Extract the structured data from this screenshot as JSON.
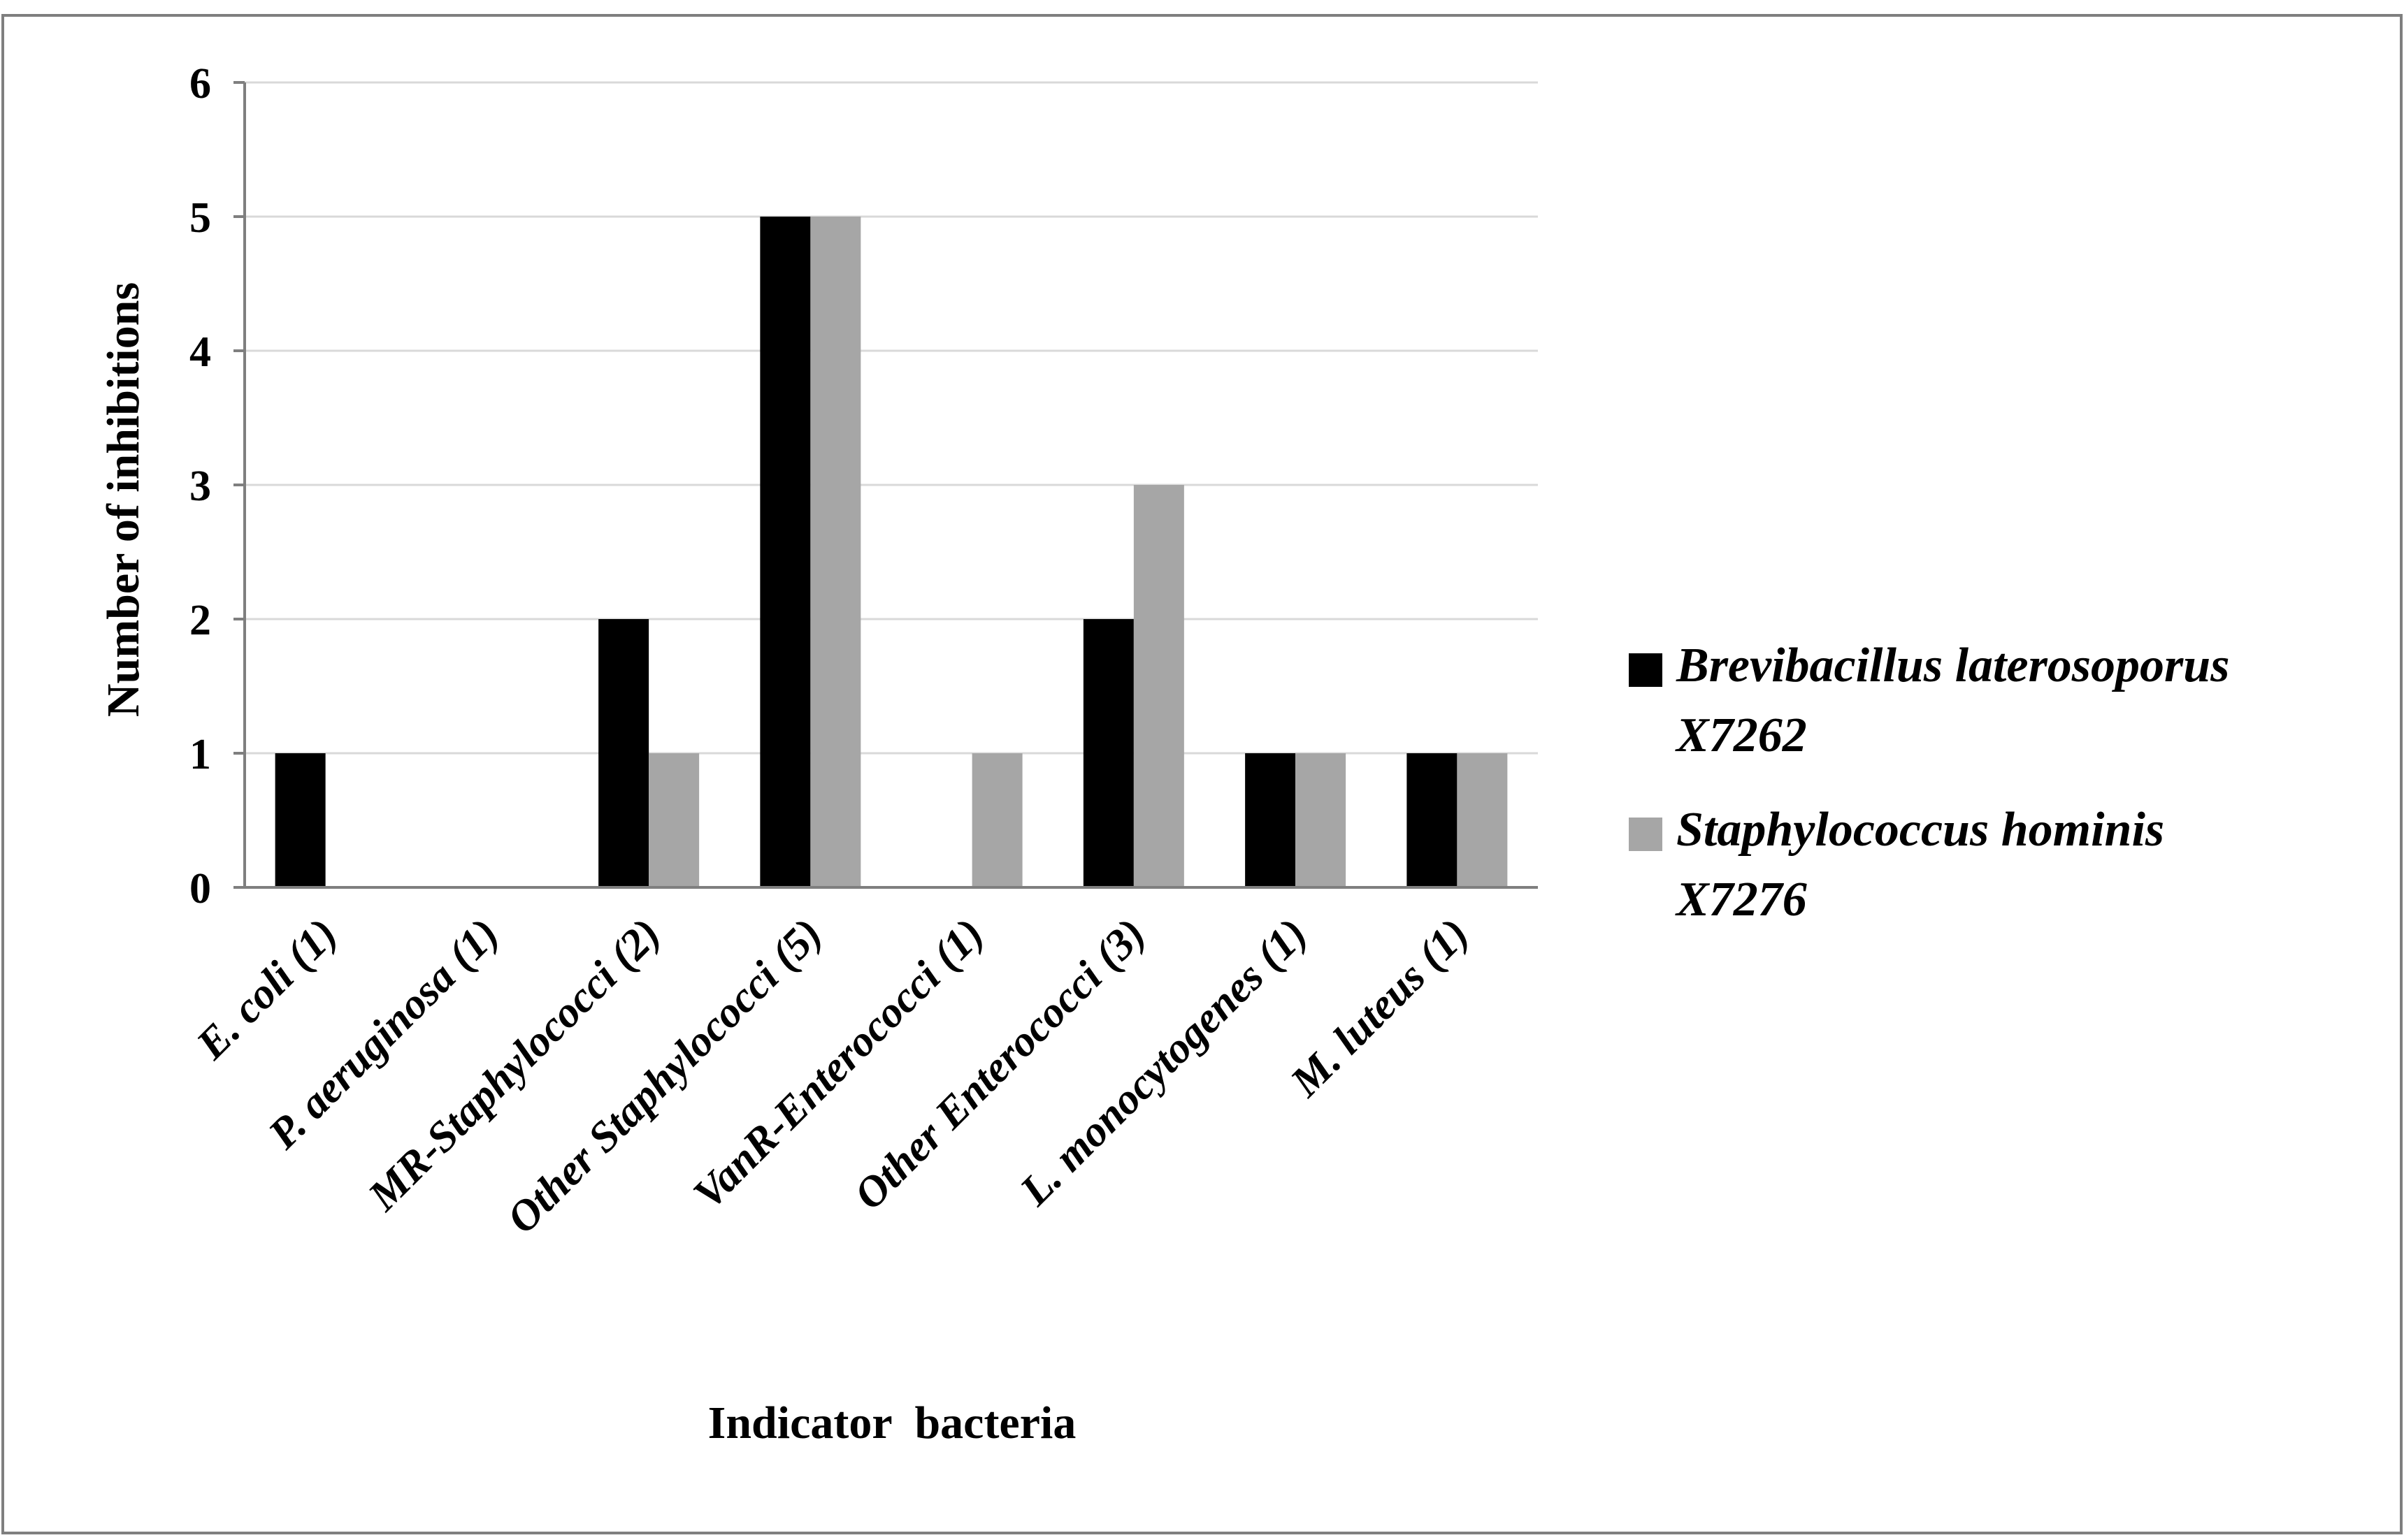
{
  "chart_data": {
    "type": "bar",
    "title": "",
    "xlabel": "Indicator  bacteria",
    "ylabel": "Number of inhibitions",
    "ylim": [
      0,
      6
    ],
    "yticks": [
      "0",
      "1",
      "2",
      "3",
      "4",
      "5",
      "6"
    ],
    "grid": true,
    "legend_position": "right",
    "categories": [
      "E. coli (1)",
      "P. aeruginosa (1)",
      "MR-Staphylococci (2)",
      "Other Staphylococci (5)",
      "VanR-Enterococci (1)",
      "Other Enterococci (3)",
      "L. monocytogenes (1)",
      "M. luteus (1)"
    ],
    "series": [
      {
        "name": "Brevibacillus laterosoporus X7262",
        "legend_lines": [
          "Brevibacillus laterosoporus",
          "X7262"
        ],
        "color": "#000000",
        "values": [
          1,
          0,
          2,
          5,
          0,
          2,
          1,
          1
        ]
      },
      {
        "name": "Staphylococcus hominis X7276",
        "legend_lines": [
          "Staphylococcus hominis",
          "X7276"
        ],
        "color": "#a6a6a6",
        "values": [
          0,
          0,
          1,
          5,
          1,
          3,
          1,
          1
        ]
      }
    ]
  },
  "colors": {
    "grid": "#d9d9d9",
    "axis": "#7f7f7f",
    "border": "#7f7f7f"
  }
}
